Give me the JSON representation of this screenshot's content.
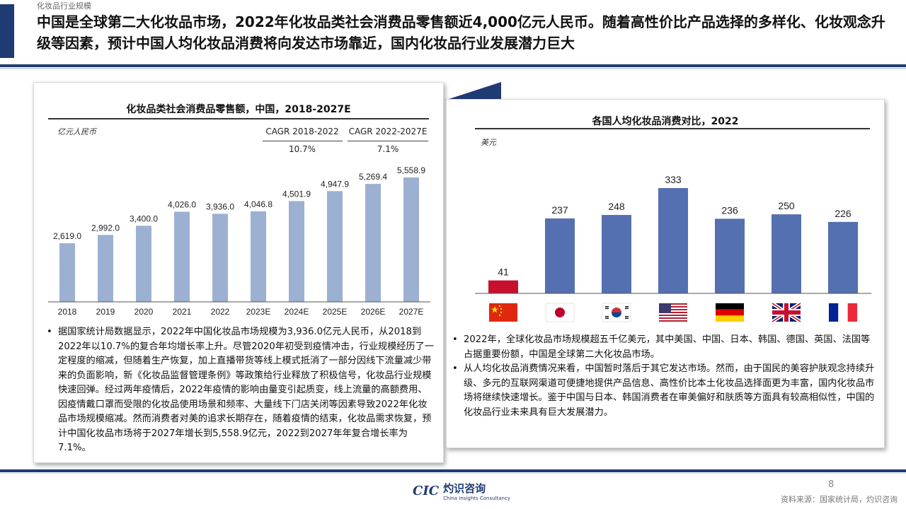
{
  "breadcrumb": "化妆品行业规模",
  "headline": "中国是全球第二大化妆品市场，2022年化妆品类社会消费品零售额近4,000亿元人民币。随着高性价比产品选择的多样化、化妆观念升级等因素，预计中国人均化妆品消费将向发达市场靠近，国内化妆品行业发展潜力巨大",
  "left": {
    "chart_title": "化妆品类社会消费品零售额，中国，2018-2027E",
    "unit": "亿元人民币",
    "cagr": [
      {
        "label": "CAGR 2018-2022",
        "value": "10.7%"
      },
      {
        "label": "CAGR 2022-2027E",
        "value": "7.1%"
      }
    ],
    "bullet": "据国家统计局数据显示，2022年中国化妆品市场规模为3,936.0亿元人民币，从2018到2022年以10.7%的复合年均增长率上升。尽管2020年初受到疫情冲击，行业规模经历了一定程度的缩减，但随着生产恢复，加上直播带货等线上模式抵消了一部分因线下流量减少带来的负面影响，新《化妆品监督管理条例》等政策给行业释放了积极信号，化妆品行业规模快速回弹。经过两年疫情后，2022年疫情的影响由量变引起质变，线上流量的高额费用、因疫情戴口罩而受限的化妆品使用场景和频率、大量线下门店关闭等因素导致2022年化妆品市场规模缩减。然而消费者对美的追求长期存在，随着疫情的结束，化妆品需求恢复，预计中国化妆品市场将于2027年增长到5,558.9亿元，2022到2027年年复合增长率为7.1%。"
  },
  "right": {
    "chart_title": "各国人均化妆品消费对比，2022",
    "unit": "美元",
    "bullets": [
      "2022年，全球化妆品市场规模超五千亿美元，其中美国、中国、日本、韩国、德国、英国、法国等占据重要份额，中国是全球第二大化妆品市场。",
      "从人均化妆品消费情况来看，中国暂时落后于其它发达市场。然而，由于国民的美容护肤观念持续升级、多元的互联网渠道可便捷地提供产品信息、高性价比本土化妆品选择面更为丰富，国内化妆品市场将继续快速增长。鉴于中国与日本、韩国消费者在审美偏好和肤质等方面具有较高相似性，中国的化妆品行业未来具有巨大发展潜力。"
    ]
  },
  "chart_data": [
    {
      "type": "bar",
      "title": "化妆品类社会消费品零售额，中国，2018-2027E",
      "ylabel": "亿元人民币",
      "categories": [
        "2018",
        "2019",
        "2020",
        "2021",
        "2022",
        "2023E",
        "2024E",
        "2025E",
        "2026E",
        "2027E"
      ],
      "values": [
        2619.0,
        2992.0,
        3400.0,
        4026.0,
        3936.0,
        4046.8,
        4501.9,
        4947.9,
        5269.4,
        5558.9
      ],
      "data_labels": [
        "2,619.0",
        "2,992.0",
        "3,400.0",
        "4,026.0",
        "3,936.0",
        "4,046.8",
        "4,501.9",
        "4,947.9",
        "5,269.4",
        "5,558.9"
      ],
      "ylim": [
        0,
        6000
      ],
      "grid": false,
      "bar_color": "#9cb0d2"
    },
    {
      "type": "bar",
      "title": "各国人均化妆品消费对比，2022",
      "ylabel": "美元",
      "categories": [
        "china-flag",
        "japan-flag",
        "korea-flag",
        "usa-flag",
        "germany-flag",
        "uk-flag",
        "france-flag"
      ],
      "values": [
        41,
        237,
        248,
        333,
        236,
        250,
        226
      ],
      "ylim": [
        0,
        380
      ],
      "grid": false,
      "bar_colors": [
        "#c8102e",
        "#5470b0",
        "#5470b0",
        "#5470b0",
        "#5470b0",
        "#5470b0",
        "#5470b0"
      ]
    }
  ],
  "footer": {
    "page": "8",
    "source": "资料来源：国家统计局，灼识咨询",
    "logo_mark": "CIC",
    "logo_cn": "灼识咨询",
    "logo_en": "China Insights Consultancy"
  }
}
